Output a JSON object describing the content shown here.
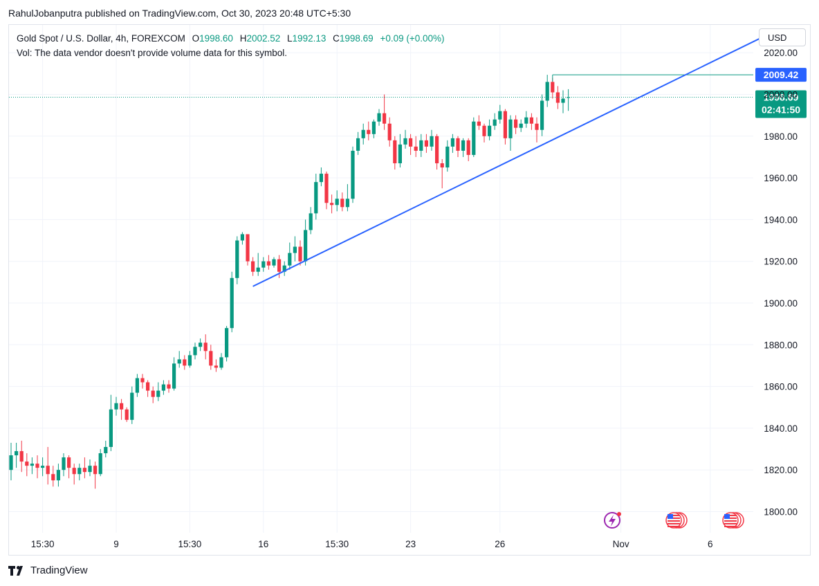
{
  "header": {
    "publisher_line": "RahulJobanputra published on TradingView.com, Oct 30, 2023 20:48 UTC+5:30"
  },
  "legend": {
    "symbol": "Gold Spot / U.S. Dollar, 4h, FOREXCOM",
    "o_label": "O",
    "o_value": "1998.60",
    "h_label": "H",
    "h_value": "2002.52",
    "l_label": "L",
    "l_value": "1992.13",
    "c_label": "C",
    "c_value": "1998.69",
    "change": "+0.09 (+0.00%)",
    "vol_note": "Vol: The data vendor doesn't provide volume data for this symbol."
  },
  "currency_button": "USD",
  "footer": {
    "brand": "TradingView"
  },
  "colors": {
    "up": "#089981",
    "down": "#f23645",
    "trendline": "#2962ff",
    "price_line": "#089981",
    "level_label": "#2962ff"
  },
  "chart_data": {
    "type": "candlestick",
    "ylim": [
      1790,
      2030
    ],
    "y_ticks": [
      "1800.00",
      "1820.00",
      "1840.00",
      "1860.00",
      "1880.00",
      "1900.00",
      "1920.00",
      "1940.00",
      "1960.00",
      "1980.00",
      "2000.00",
      "2020.00"
    ],
    "x_ticks": [
      {
        "label": "15:30",
        "index": 6
      },
      {
        "label": "9",
        "index": 20
      },
      {
        "label": "15:30",
        "index": 34
      },
      {
        "label": "16",
        "index": 48
      },
      {
        "label": "15:30",
        "index": 62
      },
      {
        "label": "23",
        "index": 76
      },
      {
        "label": "26",
        "index": 93
      },
      {
        "label": "Nov",
        "index": 116
      },
      {
        "label": "6",
        "index": 133
      }
    ],
    "candles": [
      [
        1820,
        1827,
        1833,
        1815
      ],
      [
        1827,
        1829,
        1833,
        1821
      ],
      [
        1829,
        1824,
        1834,
        1819
      ],
      [
        1824,
        1822,
        1828,
        1817
      ],
      [
        1822,
        1823,
        1826,
        1818
      ],
      [
        1823,
        1821,
        1827,
        1816
      ],
      [
        1821,
        1822,
        1826,
        1817
      ],
      [
        1822,
        1818,
        1831,
        1813
      ],
      [
        1818,
        1815,
        1822,
        1812
      ],
      [
        1815,
        1820,
        1823,
        1812
      ],
      [
        1820,
        1826,
        1828,
        1817
      ],
      [
        1826,
        1821,
        1827,
        1816
      ],
      [
        1821,
        1818,
        1823,
        1813
      ],
      [
        1818,
        1821,
        1823,
        1815
      ],
      [
        1821,
        1819,
        1826,
        1816
      ],
      [
        1819,
        1822,
        1825,
        1817
      ],
      [
        1822,
        1818,
        1824,
        1811
      ],
      [
        1818,
        1828,
        1830,
        1817
      ],
      [
        1828,
        1831,
        1834,
        1826
      ],
      [
        1831,
        1849,
        1856,
        1829
      ],
      [
        1849,
        1852,
        1855,
        1846
      ],
      [
        1852,
        1849,
        1854,
        1844
      ],
      [
        1849,
        1844,
        1850,
        1843
      ],
      [
        1844,
        1857,
        1860,
        1842
      ],
      [
        1857,
        1864,
        1866,
        1855
      ],
      [
        1864,
        1862,
        1866,
        1859
      ],
      [
        1862,
        1858,
        1863,
        1855
      ],
      [
        1858,
        1855,
        1860,
        1852
      ],
      [
        1855,
        1858,
        1862,
        1853
      ],
      [
        1858,
        1861,
        1863,
        1856
      ],
      [
        1861,
        1859,
        1863,
        1857
      ],
      [
        1859,
        1871,
        1874,
        1858
      ],
      [
        1871,
        1873,
        1877,
        1869
      ],
      [
        1873,
        1870,
        1875,
        1868
      ],
      [
        1870,
        1875,
        1877,
        1869
      ],
      [
        1875,
        1879,
        1881,
        1873
      ],
      [
        1879,
        1881,
        1883,
        1877
      ],
      [
        1881,
        1877,
        1885,
        1873
      ],
      [
        1877,
        1870,
        1880,
        1868
      ],
      [
        1870,
        1869,
        1873,
        1867
      ],
      [
        1869,
        1874,
        1876,
        1868
      ],
      [
        1874,
        1888,
        1889,
        1872
      ],
      [
        1888,
        1912,
        1915,
        1886
      ],
      [
        1912,
        1930,
        1932,
        1909
      ],
      [
        1930,
        1933,
        1934,
        1928
      ],
      [
        1933,
        1920,
        1933,
        1918
      ],
      [
        1920,
        1915,
        1922,
        1913
      ],
      [
        1915,
        1917,
        1924,
        1913
      ],
      [
        1917,
        1920,
        1922,
        1915
      ],
      [
        1920,
        1918,
        1923,
        1916
      ],
      [
        1918,
        1921,
        1922,
        1917
      ],
      [
        1921,
        1915,
        1923,
        1912
      ],
      [
        1915,
        1918,
        1920,
        1913
      ],
      [
        1918,
        1924,
        1929,
        1916
      ],
      [
        1924,
        1927,
        1932,
        1920
      ],
      [
        1927,
        1920,
        1930,
        1918
      ],
      [
        1920,
        1935,
        1940,
        1918
      ],
      [
        1935,
        1943,
        1946,
        1933
      ],
      [
        1943,
        1958,
        1962,
        1940
      ],
      [
        1958,
        1962,
        1965,
        1956
      ],
      [
        1962,
        1948,
        1963,
        1945
      ],
      [
        1948,
        1947,
        1952,
        1943
      ],
      [
        1947,
        1950,
        1954,
        1944
      ],
      [
        1950,
        1946,
        1953,
        1944
      ],
      [
        1946,
        1950,
        1957,
        1944
      ],
      [
        1950,
        1973,
        1975,
        1948
      ],
      [
        1973,
        1979,
        1982,
        1971
      ],
      [
        1979,
        1983,
        1986,
        1976
      ],
      [
        1983,
        1981,
        1987,
        1978
      ],
      [
        1981,
        1987,
        1988,
        1979
      ],
      [
        1987,
        1991,
        1993,
        1985
      ],
      [
        1991,
        1986,
        2000,
        1983
      ],
      [
        1986,
        1978,
        1989,
        1975
      ],
      [
        1978,
        1967,
        1980,
        1964
      ],
      [
        1967,
        1976,
        1981,
        1965
      ],
      [
        1976,
        1979,
        1983,
        1974
      ],
      [
        1979,
        1975,
        1981,
        1971
      ],
      [
        1975,
        1973,
        1980,
        1970
      ],
      [
        1973,
        1978,
        1981,
        1970
      ],
      [
        1978,
        1975,
        1981,
        1972
      ],
      [
        1975,
        1980,
        1983,
        1973
      ],
      [
        1980,
        1967,
        1981,
        1964
      ],
      [
        1967,
        1965,
        1969,
        1955
      ],
      [
        1965,
        1975,
        1978,
        1963
      ],
      [
        1975,
        1979,
        1981,
        1972
      ],
      [
        1979,
        1973,
        1980,
        1970
      ],
      [
        1973,
        1978,
        1979,
        1970
      ],
      [
        1978,
        1971,
        1979,
        1968
      ],
      [
        1971,
        1987,
        1989,
        1970
      ],
      [
        1987,
        1985,
        1990,
        1983
      ],
      [
        1985,
        1980,
        1986,
        1977
      ],
      [
        1980,
        1985,
        1988,
        1978
      ],
      [
        1985,
        1988,
        1991,
        1983
      ],
      [
        1988,
        1992,
        1995,
        1986
      ],
      [
        1992,
        1979,
        1993,
        1976
      ],
      [
        1979,
        1988,
        1990,
        1973
      ],
      [
        1988,
        1984,
        1990,
        1981
      ],
      [
        1984,
        1986,
        1988,
        1982
      ],
      [
        1986,
        1989,
        1992,
        1984
      ],
      [
        1989,
        1986,
        1991,
        1983
      ],
      [
        1986,
        1983,
        1989,
        1977
      ],
      [
        1983,
        1997,
        2000,
        1980
      ],
      [
        1997,
        2006,
        2009.42,
        1994
      ],
      [
        2006,
        2001,
        2008,
        1998
      ],
      [
        2001,
        1996,
        2004,
        1993
      ],
      [
        1996,
        1998,
        2002,
        1991
      ],
      [
        1998.6,
        1998.69,
        2002.52,
        1992.13
      ]
    ],
    "trendline": {
      "from": {
        "index": 46,
        "price": 1908
      },
      "to": {
        "index": 145,
        "price": 2030
      }
    },
    "level": {
      "price": 2009.42,
      "label": "2009.42",
      "from_index": 103
    },
    "last_price": {
      "label": "1998.69",
      "countdown": "02:41:50"
    }
  }
}
